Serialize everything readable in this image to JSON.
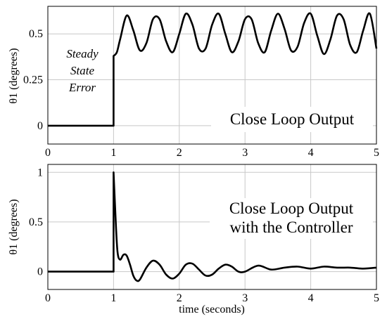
{
  "chart_data": [
    {
      "type": "line",
      "title": "",
      "xlabel": "",
      "ylabel": "θ1 (degrees)",
      "xlim": [
        0,
        5
      ],
      "ylim": [
        -0.1,
        0.65
      ],
      "xticks": [
        0,
        1,
        2,
        3,
        4,
        5
      ],
      "yticks": [
        0,
        0.25,
        0.5
      ],
      "ytick_labels": [
        "0",
        "0.25",
        "0.5"
      ],
      "grid": true,
      "annotations": [
        "Close Loop Output",
        "Steady",
        "State",
        "Error"
      ],
      "series": [
        {
          "x": [
            0,
            1,
            1,
            1.05,
            1.1,
            1.2,
            1.3,
            1.4,
            1.5,
            1.6,
            1.7,
            1.8,
            1.9,
            2.0,
            2.1,
            2.2,
            2.3,
            2.4,
            2.5,
            2.6,
            2.7,
            2.8,
            2.9,
            3.0,
            3.1,
            3.2,
            3.3,
            3.4,
            3.5,
            3.6,
            3.7,
            3.8,
            3.9,
            4.0,
            4.1,
            4.2,
            4.3,
            4.4,
            4.5,
            4.6,
            4.7,
            4.8,
            4.9,
            5.0
          ],
          "values": [
            0,
            0,
            0.38,
            0.4,
            0.47,
            0.6,
            0.52,
            0.41,
            0.45,
            0.58,
            0.58,
            0.46,
            0.4,
            0.5,
            0.61,
            0.55,
            0.42,
            0.42,
            0.55,
            0.61,
            0.5,
            0.4,
            0.46,
            0.58,
            0.58,
            0.45,
            0.4,
            0.52,
            0.61,
            0.53,
            0.41,
            0.43,
            0.56,
            0.61,
            0.49,
            0.39,
            0.47,
            0.6,
            0.58,
            0.44,
            0.4,
            0.52,
            0.61,
            0.42
          ]
        }
      ]
    },
    {
      "type": "line",
      "title": "",
      "xlabel": "time (seconds)",
      "ylabel": "θ1 (degrees)",
      "xlim": [
        0,
        5
      ],
      "ylim": [
        -0.18,
        1.08
      ],
      "xticks": [
        0,
        1,
        2,
        3,
        4,
        5
      ],
      "yticks": [
        0,
        0.5,
        1
      ],
      "ytick_labels": [
        "0",
        "0.5",
        "1"
      ],
      "grid": true,
      "annotations": [
        "Close Loop Output",
        "with the Controller"
      ],
      "series": [
        {
          "x": [
            0,
            1,
            1,
            1.03,
            1.06,
            1.1,
            1.15,
            1.2,
            1.25,
            1.3,
            1.35,
            1.4,
            1.5,
            1.6,
            1.7,
            1.8,
            1.9,
            2.0,
            2.1,
            2.2,
            2.3,
            2.4,
            2.5,
            2.6,
            2.7,
            2.8,
            2.9,
            3.0,
            3.2,
            3.4,
            3.6,
            3.8,
            4.0,
            4.2,
            4.4,
            4.6,
            4.8,
            5.0
          ],
          "values": [
            0,
            0,
            1.0,
            0.55,
            0.2,
            0.12,
            0.17,
            0.16,
            0.07,
            -0.04,
            -0.09,
            -0.08,
            0.04,
            0.11,
            0.07,
            -0.03,
            -0.07,
            -0.02,
            0.07,
            0.08,
            0.02,
            -0.04,
            -0.03,
            0.03,
            0.07,
            0.05,
            0.0,
            0.0,
            0.06,
            0.02,
            0.04,
            0.05,
            0.03,
            0.05,
            0.04,
            0.04,
            0.03,
            0.04
          ]
        }
      ]
    }
  ]
}
